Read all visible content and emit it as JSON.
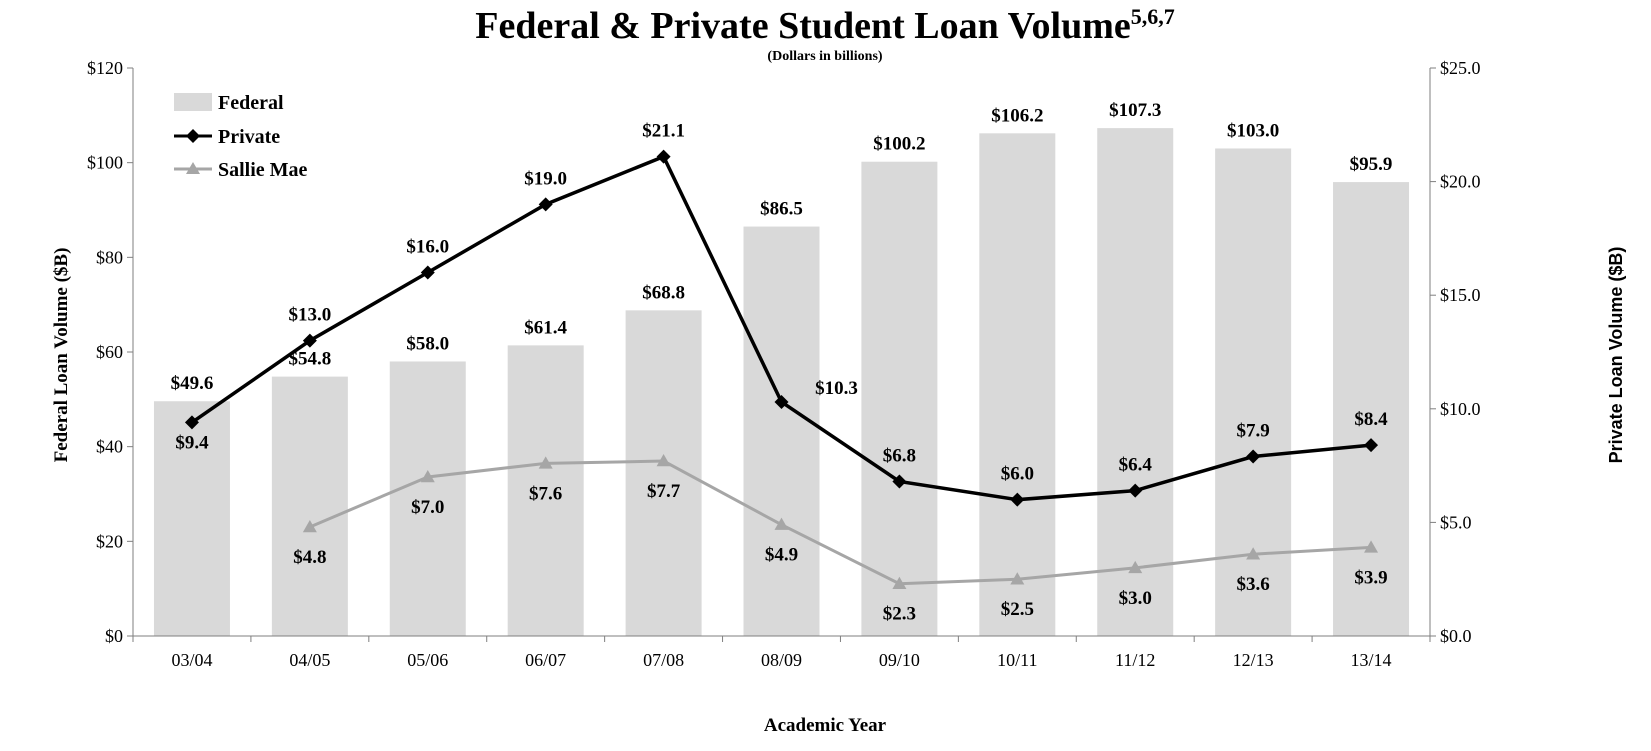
{
  "chart_data": {
    "type": "bar",
    "title": "Federal & Private Student Loan Volume",
    "title_superscript": "5,6,7",
    "subtitle": "(Dollars in billions)",
    "xlabel": "Academic Year",
    "ylabel": "Federal Loan Volume ($B)",
    "y2label": "Private Loan Volume ($B)",
    "categories": [
      "03/04",
      "04/05",
      "05/06",
      "06/07",
      "07/08",
      "08/09",
      "09/10",
      "10/11",
      "11/12",
      "12/13",
      "13/14"
    ],
    "ylim": [
      0,
      120
    ],
    "y2lim": [
      0,
      25
    ],
    "yticks": [
      "$0",
      "$20",
      "$40",
      "$60",
      "$80",
      "$100",
      "$120"
    ],
    "y2ticks": [
      "$0.0",
      "$5.0",
      "$10.0",
      "$15.0",
      "$20.0",
      "$25.0"
    ],
    "grid": false,
    "legend_position": "top-left",
    "series": [
      {
        "name": "Federal",
        "type": "bar",
        "axis": "left",
        "color": "#d9d9d9",
        "values": [
          49.6,
          54.8,
          58.0,
          61.4,
          68.8,
          86.5,
          100.2,
          106.2,
          107.3,
          103.0,
          95.9
        ],
        "labels": [
          "$49.6",
          "$54.8",
          "$58.0",
          "$61.4",
          "$68.8",
          "$86.5",
          "$100.2",
          "$106.2",
          "$107.3",
          "$103.0",
          "$95.9"
        ]
      },
      {
        "name": "Private",
        "type": "line",
        "axis": "right",
        "marker": "diamond",
        "color": "#000000",
        "values": [
          9.4,
          13.0,
          16.0,
          19.0,
          21.1,
          10.3,
          6.8,
          6.0,
          6.4,
          7.9,
          8.4
        ],
        "labels": [
          "$9.4",
          "$13.0",
          "$16.0",
          "$19.0",
          "$21.1",
          "$10.3",
          "$6.8",
          "$6.0",
          "$6.4",
          "$7.9",
          "$8.4"
        ]
      },
      {
        "name": "Sallie Mae",
        "type": "line",
        "axis": "right",
        "marker": "triangle",
        "color": "#a6a6a6",
        "values": [
          null,
          4.8,
          7.0,
          7.6,
          7.7,
          4.9,
          2.3,
          2.5,
          3.0,
          3.6,
          3.9
        ],
        "labels": [
          null,
          "$4.8",
          "$7.0",
          "$7.6",
          "$7.7",
          "$4.9",
          "$2.3",
          "$2.5",
          "$3.0",
          "$3.6",
          "$3.9"
        ]
      }
    ]
  }
}
